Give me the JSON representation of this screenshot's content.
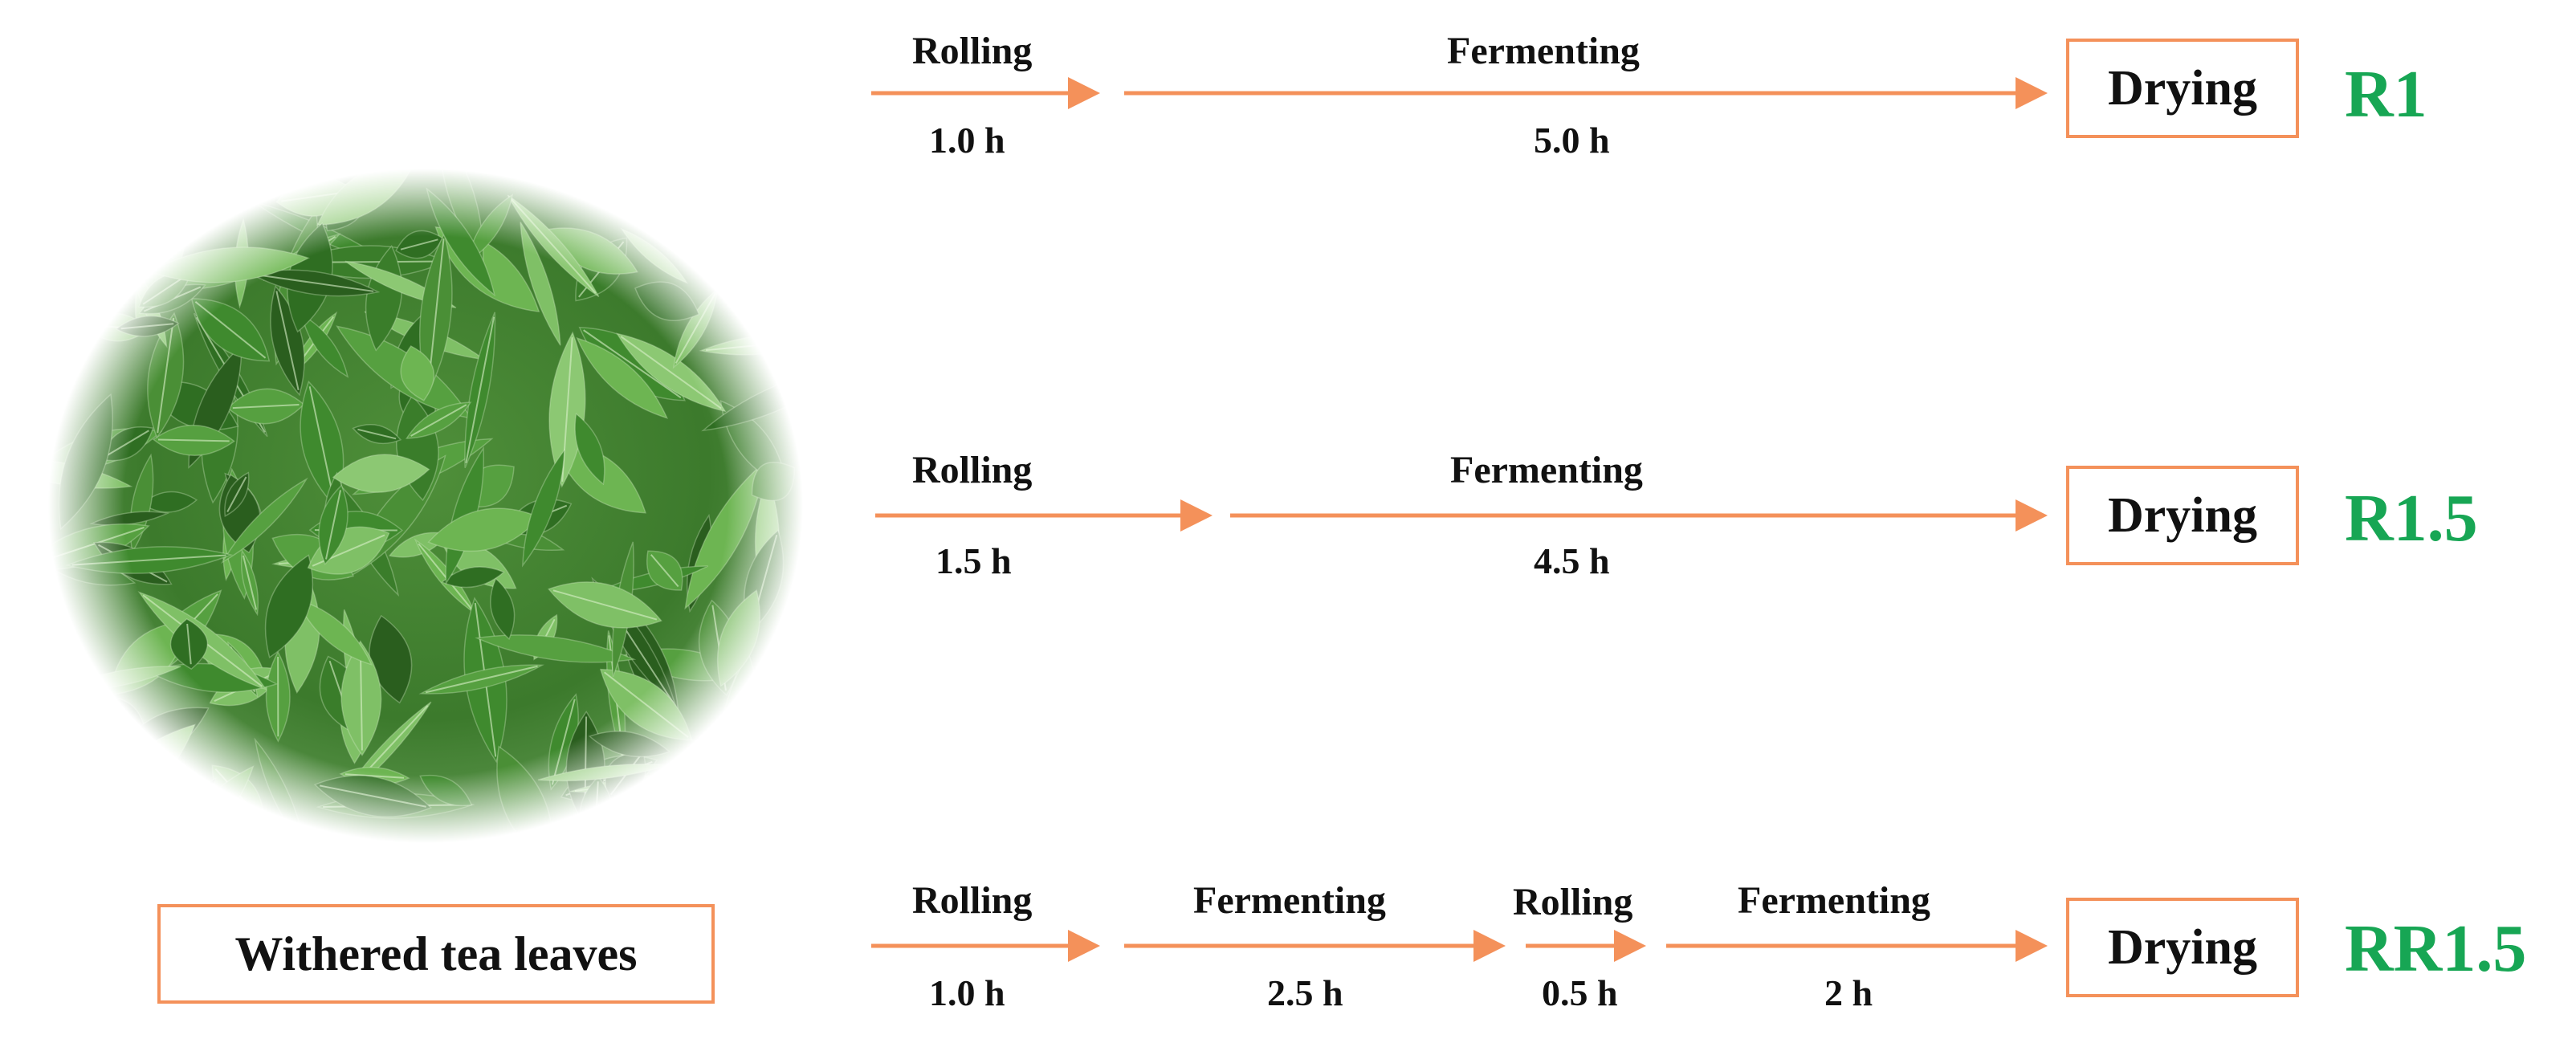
{
  "colors": {
    "arrow": "#f4915a",
    "box_border": "#f4915a",
    "route_label": "#17a654",
    "text": "#111111"
  },
  "image": {
    "description_icon": "tea-leaves-photo-icon",
    "caption": "Withered tea leaves"
  },
  "routes": [
    {
      "name": "R1",
      "steps": [
        {
          "label": "Rolling",
          "duration": "1.0 h"
        },
        {
          "label": "Fermenting",
          "duration": "5.0 h"
        }
      ],
      "end": "Drying"
    },
    {
      "name": "R1.5",
      "steps": [
        {
          "label": "Rolling",
          "duration": "1.5 h"
        },
        {
          "label": "Fermenting",
          "duration": "4.5 h"
        }
      ],
      "end": "Drying"
    },
    {
      "name": "RR1.5",
      "steps": [
        {
          "label": "Rolling",
          "duration": "1.0 h"
        },
        {
          "label": "Fermenting",
          "duration": "2.5 h"
        },
        {
          "label": "Rolling",
          "duration": "0.5 h"
        },
        {
          "label": "Fermenting",
          "duration": "2 h"
        }
      ],
      "end": "Drying"
    }
  ]
}
